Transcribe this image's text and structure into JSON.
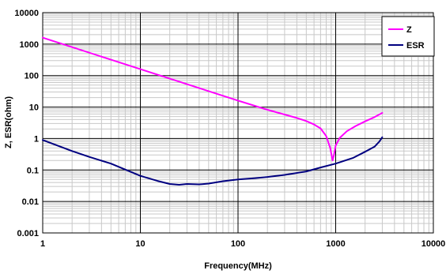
{
  "chart_data": {
    "type": "line",
    "xlabel": "Frequency(MHz)",
    "ylabel": "Z, ESR(ohm)",
    "xscale": "log",
    "yscale": "log",
    "xlim": [
      1,
      10000
    ],
    "ylim": [
      0.001,
      10000
    ],
    "x_ticks": [
      {
        "value": 1,
        "label": "1"
      },
      {
        "value": 10,
        "label": "10"
      },
      {
        "value": 100,
        "label": "100"
      },
      {
        "value": 1000,
        "label": "1000"
      },
      {
        "value": 10000,
        "label": "10000"
      }
    ],
    "y_ticks": [
      {
        "value": 0.001,
        "label": "0.001"
      },
      {
        "value": 0.01,
        "label": "0.01"
      },
      {
        "value": 0.1,
        "label": "0.1"
      },
      {
        "value": 1,
        "label": "1"
      },
      {
        "value": 10,
        "label": "10"
      },
      {
        "value": 100,
        "label": "100"
      },
      {
        "value": 1000,
        "label": "1000"
      },
      {
        "value": 10000,
        "label": "10000"
      }
    ],
    "grid": true,
    "legend_position": "top-right",
    "series": [
      {
        "name": "Z",
        "color": "#ff00ff",
        "points": [
          [
            1,
            1600
          ],
          [
            2,
            800
          ],
          [
            5,
            320
          ],
          [
            10,
            160
          ],
          [
            20,
            80
          ],
          [
            50,
            32
          ],
          [
            100,
            16
          ],
          [
            200,
            8.2
          ],
          [
            400,
            4.5
          ],
          [
            500,
            3.6
          ],
          [
            600,
            2.8
          ],
          [
            700,
            2.1
          ],
          [
            800,
            1.2
          ],
          [
            880,
            0.5
          ],
          [
            930,
            0.2
          ],
          [
            960,
            0.3
          ],
          [
            1000,
            0.6
          ],
          [
            1100,
            1.05
          ],
          [
            1300,
            1.7
          ],
          [
            1600,
            2.5
          ],
          [
            2000,
            3.5
          ],
          [
            2500,
            4.8
          ],
          [
            3000,
            6.5
          ]
        ]
      },
      {
        "name": "ESR",
        "color": "#000080",
        "points": [
          [
            1,
            0.9
          ],
          [
            2,
            0.4
          ],
          [
            3,
            0.26
          ],
          [
            5,
            0.16
          ],
          [
            10,
            0.065
          ],
          [
            15,
            0.045
          ],
          [
            20,
            0.036
          ],
          [
            25,
            0.034
          ],
          [
            30,
            0.036
          ],
          [
            40,
            0.035
          ],
          [
            50,
            0.037
          ],
          [
            70,
            0.044
          ],
          [
            100,
            0.05
          ],
          [
            150,
            0.055
          ],
          [
            200,
            0.06
          ],
          [
            300,
            0.07
          ],
          [
            500,
            0.09
          ],
          [
            700,
            0.12
          ],
          [
            1000,
            0.16
          ],
          [
            1500,
            0.24
          ],
          [
            2000,
            0.38
          ],
          [
            2500,
            0.55
          ],
          [
            2800,
            0.8
          ],
          [
            3000,
            1.1
          ]
        ]
      }
    ]
  }
}
